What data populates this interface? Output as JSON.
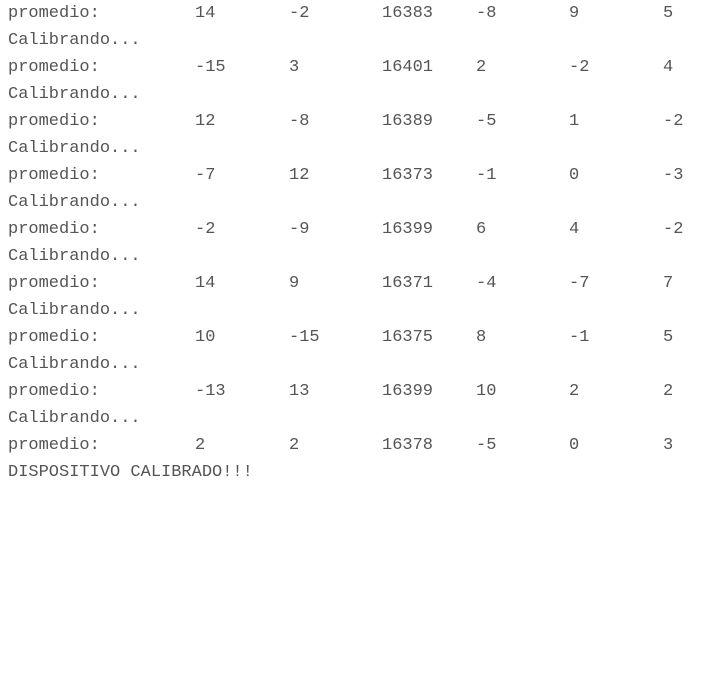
{
  "console": {
    "rows": [
      {
        "label": "promedio:",
        "values": [
          "14",
          "-2",
          "16383",
          "-8",
          "9",
          "5"
        ],
        "status": "Calibrando..."
      },
      {
        "label": "promedio:",
        "values": [
          "-15",
          "3",
          "16401",
          "2",
          "-2",
          "4"
        ],
        "status": "Calibrando..."
      },
      {
        "label": "promedio:",
        "values": [
          "12",
          "-8",
          "16389",
          "-5",
          "1",
          "-2"
        ],
        "status": "Calibrando..."
      },
      {
        "label": "promedio:",
        "values": [
          "-7",
          "12",
          "16373",
          "-1",
          "0",
          "-3"
        ],
        "status": "Calibrando..."
      },
      {
        "label": "promedio:",
        "values": [
          "-2",
          "-9",
          "16399",
          "6",
          "4",
          "-2"
        ],
        "status": "Calibrando..."
      },
      {
        "label": "promedio:",
        "values": [
          "14",
          "9",
          "16371",
          "-4",
          "-7",
          "7"
        ],
        "status": "Calibrando..."
      },
      {
        "label": "promedio:",
        "values": [
          "10",
          "-15",
          "16375",
          "8",
          "-1",
          "5"
        ],
        "status": "Calibrando..."
      },
      {
        "label": "promedio:",
        "values": [
          "-13",
          "13",
          "16399",
          "10",
          "2",
          "2"
        ],
        "status": "Calibrando..."
      },
      {
        "label": "promedio:",
        "values": [
          "2",
          "2",
          "16378",
          "-5",
          "0",
          "3"
        ],
        "status": "DISPOSITIVO CALIBRADO!!!"
      }
    ]
  }
}
